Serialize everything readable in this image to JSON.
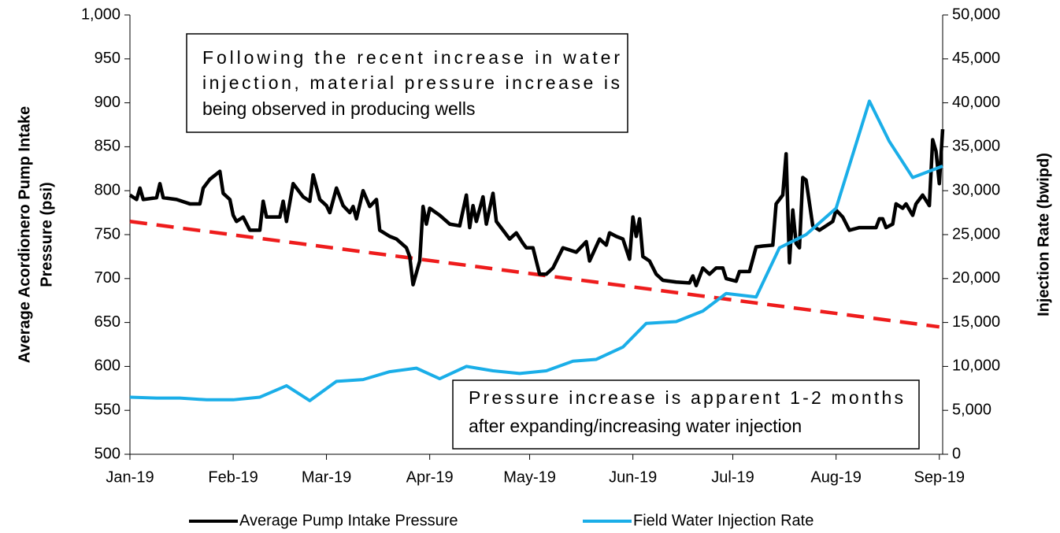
{
  "chart_data": {
    "type": "line",
    "ylabel": [
      "Average Acordionero Pump Intake",
      "Pressure (psi)"
    ],
    "y2label": "Injection Rate (bwipd)",
    "xlim": [
      0,
      244
    ],
    "xticks": [
      {
        "value": 0,
        "label": "Jan-19"
      },
      {
        "value": 31,
        "label": "Feb-19"
      },
      {
        "value": 59,
        "label": "Mar-19"
      },
      {
        "value": 90,
        "label": "Apr-19"
      },
      {
        "value": 120,
        "label": "May-19"
      },
      {
        "value": 151,
        "label": "Jun-19"
      },
      {
        "value": 181,
        "label": "Jul-19"
      },
      {
        "value": 212,
        "label": "Aug-19"
      },
      {
        "value": 243,
        "label": "Sep-19"
      }
    ],
    "ylim": [
      500,
      1000
    ],
    "yticks": [
      500,
      550,
      600,
      650,
      700,
      750,
      800,
      850,
      900,
      950,
      {
        "value": 1000,
        "label": "1,000"
      }
    ],
    "y2lim": [
      0,
      50000
    ],
    "y2ticks": [
      0,
      {
        "value": 5000,
        "label": "5,000"
      },
      {
        "value": 10000,
        "label": "10,000"
      },
      {
        "value": 15000,
        "label": "15,000"
      },
      {
        "value": 20000,
        "label": "20,000"
      },
      {
        "value": 25000,
        "label": "25,000"
      },
      {
        "value": 30000,
        "label": "30,000"
      },
      {
        "value": 35000,
        "label": "35,000"
      },
      {
        "value": 40000,
        "label": "40,000"
      },
      {
        "value": 45000,
        "label": "45,000"
      },
      {
        "value": 50000,
        "label": "50,000"
      }
    ],
    "legend": "bottom",
    "series": [
      {
        "name": "Average Pump Intake Pressure",
        "color": "#000000",
        "x": [
          0,
          2,
          3,
          4,
          8,
          9,
          10,
          14,
          18,
          21,
          22,
          24,
          27,
          28,
          30,
          31,
          32,
          34,
          36,
          39,
          40,
          41,
          45,
          46,
          47,
          49,
          52,
          54,
          55,
          57,
          59,
          60,
          62,
          64,
          66,
          67,
          68,
          70,
          72,
          74,
          75,
          78,
          80,
          83,
          84,
          85,
          87,
          88,
          89,
          90,
          93,
          96,
          99,
          101,
          102,
          103,
          104,
          106,
          107,
          109,
          110,
          112,
          114,
          116,
          118,
          119,
          121,
          123,
          125,
          127,
          130,
          134,
          137,
          138,
          141,
          143,
          144,
          146,
          148,
          150,
          151,
          152,
          153,
          154,
          156,
          158,
          160,
          164,
          168,
          169,
          170,
          172,
          174,
          176,
          178,
          179,
          182,
          183,
          186,
          188,
          190,
          193,
          194,
          196,
          197,
          198,
          199,
          200,
          201,
          202,
          203,
          205,
          207,
          209,
          211,
          212,
          214,
          216,
          219,
          222,
          224,
          225,
          226,
          227,
          229,
          230,
          232,
          233,
          235,
          236,
          238,
          240,
          241,
          242,
          243,
          244
        ],
        "values": [
          795,
          790,
          803,
          790,
          792,
          808,
          792,
          790,
          785,
          785,
          803,
          813,
          822,
          797,
          790,
          772,
          765,
          770,
          755,
          755,
          788,
          770,
          770,
          788,
          765,
          808,
          793,
          788,
          818,
          790,
          783,
          775,
          803,
          783,
          775,
          782,
          768,
          800,
          782,
          790,
          755,
          748,
          745,
          735,
          725,
          693,
          720,
          782,
          762,
          780,
          772,
          762,
          760,
          795,
          758,
          783,
          765,
          793,
          762,
          797,
          765,
          755,
          745,
          752,
          740,
          735,
          735,
          705,
          705,
          712,
          735,
          730,
          742,
          720,
          745,
          738,
          752,
          748,
          745,
          722,
          770,
          748,
          768,
          725,
          720,
          705,
          698,
          696,
          695,
          703,
          692,
          712,
          705,
          712,
          712,
          700,
          697,
          708,
          708,
          736,
          737,
          738,
          785,
          795,
          842,
          718,
          778,
          740,
          735,
          815,
          812,
          760,
          755,
          760,
          765,
          778,
          770,
          755,
          758,
          758,
          758,
          768,
          768,
          758,
          762,
          785,
          780,
          785,
          772,
          785,
          795,
          783,
          858,
          845,
          808,
          870
        ]
      },
      {
        "name": "Field Water Injection Rate",
        "color": "#1aaee8",
        "axis": "y2",
        "x": [
          0,
          8,
          15,
          23,
          31,
          39,
          47,
          54,
          62,
          70,
          78,
          86,
          93,
          101,
          109,
          117,
          125,
          133,
          140,
          148,
          155,
          164,
          172,
          179,
          188,
          195,
          203,
          212,
          222,
          228,
          235,
          244
        ],
        "values": [
          6500,
          6400,
          6400,
          6200,
          6200,
          6500,
          7800,
          6100,
          8300,
          8500,
          9400,
          9800,
          8600,
          10000,
          9500,
          9200,
          9500,
          10600,
          10800,
          12200,
          14900,
          15100,
          16300,
          18300,
          17900,
          23500,
          25000,
          28000,
          40200,
          35600,
          31500,
          32800
        ]
      }
    ],
    "trendline": {
      "color": "#ee1c1c",
      "x": [
        0,
        243
      ],
      "values": [
        765,
        645
      ]
    },
    "annotations": [
      {
        "lines": [
          "Following the recent increase in water",
          "injection, material pressure increase is",
          "being observed in producing wells"
        ]
      },
      {
        "lines": [
          "Pressure increase is apparent 1-2 months",
          "after expanding/increasing water injection"
        ]
      }
    ]
  }
}
